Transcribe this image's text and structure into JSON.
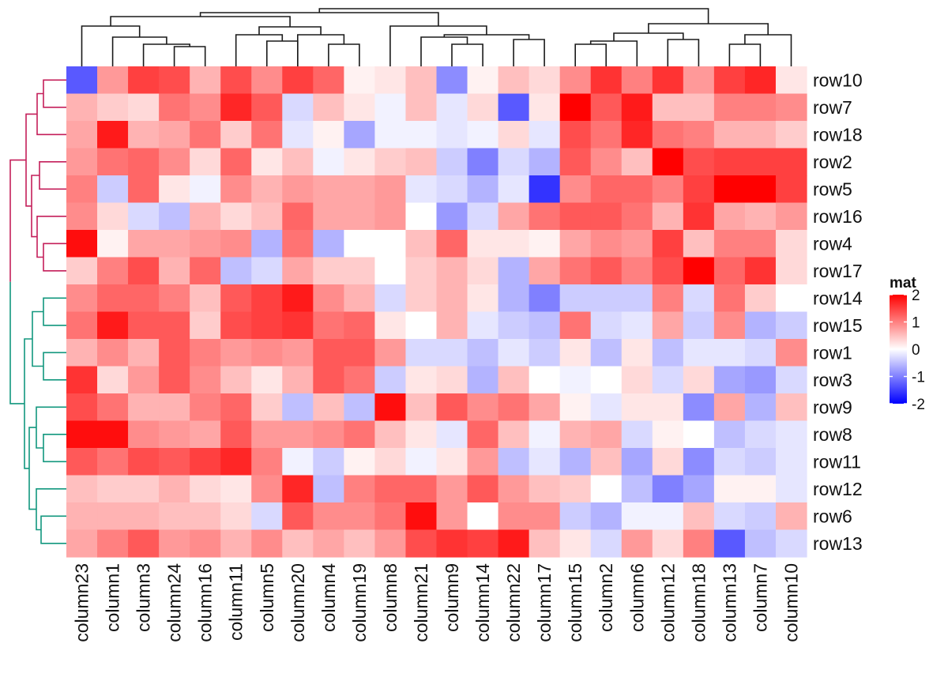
{
  "chart_data": {
    "type": "heatmap",
    "title": "",
    "rows": [
      "row10",
      "row7",
      "row18",
      "row2",
      "row5",
      "row16",
      "row4",
      "row17",
      "row14",
      "row15",
      "row1",
      "row3",
      "row9",
      "row8",
      "row11",
      "row12",
      "row6",
      "row13"
    ],
    "columns": [
      "column23",
      "column1",
      "column3",
      "column24",
      "column16",
      "column11",
      "column5",
      "column20",
      "column4",
      "column19",
      "column8",
      "column21",
      "column9",
      "column14",
      "column22",
      "column17",
      "column15",
      "column2",
      "column6",
      "column12",
      "column18",
      "column13",
      "column7",
      "column10"
    ],
    "values": [
      [
        -1.3,
        0.8,
        1.5,
        1.4,
        0.6,
        1.4,
        0.9,
        1.5,
        1.2,
        0.1,
        0.2,
        0.5,
        -0.9,
        0.1,
        0.5,
        0.3,
        0.9,
        1.6,
        1.0,
        1.6,
        0.8,
        1.5,
        1.7,
        0.2
      ],
      [
        0.6,
        0.4,
        0.3,
        1.1,
        0.9,
        1.7,
        1.3,
        -0.3,
        0.5,
        0.2,
        -0.1,
        0.5,
        -0.2,
        0.3,
        -1.3,
        0.2,
        2.0,
        1.3,
        1.8,
        0.5,
        0.5,
        1.0,
        1.0,
        0.9
      ],
      [
        0.7,
        1.8,
        0.6,
        0.7,
        1.1,
        0.4,
        1.1,
        -0.2,
        0.1,
        -0.7,
        -0.1,
        -0.1,
        -0.2,
        -0.1,
        0.3,
        -0.2,
        1.4,
        1.1,
        1.7,
        1.1,
        1.0,
        0.6,
        0.6,
        0.4
      ],
      [
        0.8,
        1.1,
        1.2,
        0.9,
        0.3,
        1.2,
        0.2,
        0.5,
        -0.1,
        0.2,
        0.4,
        0.5,
        -0.4,
        -1.0,
        -0.3,
        -0.6,
        1.3,
        0.9,
        0.5,
        2.0,
        1.4,
        1.5,
        1.5,
        1.5
      ],
      [
        1.0,
        -0.4,
        1.2,
        0.2,
        -0.1,
        0.9,
        0.6,
        0.8,
        0.7,
        0.7,
        0.8,
        -0.2,
        -0.3,
        -0.6,
        -0.2,
        -1.6,
        0.9,
        1.2,
        1.2,
        1.0,
        1.5,
        2.0,
        2.0,
        1.5
      ],
      [
        0.9,
        0.3,
        -0.3,
        -0.5,
        0.6,
        0.3,
        0.5,
        1.2,
        0.7,
        0.7,
        0.8,
        0.0,
        -0.8,
        -0.3,
        0.7,
        1.1,
        1.3,
        1.3,
        1.1,
        0.6,
        1.6,
        0.7,
        0.6,
        0.8
      ],
      [
        1.9,
        0.1,
        0.7,
        0.7,
        0.8,
        0.9,
        -0.6,
        1.1,
        -0.6,
        0.0,
        0.0,
        0.5,
        1.2,
        0.2,
        0.2,
        0.1,
        0.7,
        0.9,
        0.8,
        1.5,
        0.5,
        1.0,
        1.0,
        0.3
      ],
      [
        0.4,
        1.0,
        1.4,
        0.6,
        1.2,
        -0.5,
        -0.3,
        0.7,
        0.4,
        0.4,
        0.0,
        0.4,
        0.6,
        0.3,
        -0.6,
        0.7,
        1.1,
        1.3,
        1.0,
        1.4,
        2.0,
        1.2,
        1.6,
        0.3
      ],
      [
        0.9,
        1.2,
        1.2,
        1.0,
        0.5,
        1.3,
        1.5,
        1.8,
        0.9,
        0.6,
        -0.3,
        0.4,
        0.6,
        0.2,
        -0.6,
        -1.0,
        -0.4,
        -0.4,
        -0.4,
        1.0,
        -0.3,
        1.1,
        0.4,
        0.0
      ],
      [
        1.1,
        1.8,
        1.3,
        1.3,
        0.4,
        1.4,
        1.5,
        1.6,
        1.1,
        1.2,
        0.2,
        0.0,
        0.6,
        -0.2,
        -0.4,
        -0.5,
        1.1,
        -0.3,
        -0.2,
        0.7,
        -0.4,
        0.9,
        -0.6,
        -0.4
      ],
      [
        0.6,
        0.9,
        0.6,
        1.3,
        1.0,
        0.8,
        0.9,
        0.8,
        1.3,
        1.3,
        0.8,
        -0.3,
        -0.3,
        -0.5,
        -0.2,
        -0.4,
        0.2,
        -0.5,
        0.2,
        -0.5,
        -0.2,
        -0.2,
        -0.3,
        0.9
      ],
      [
        1.6,
        0.3,
        0.8,
        1.3,
        0.9,
        0.5,
        0.2,
        0.6,
        1.3,
        1.1,
        -0.4,
        0.2,
        0.3,
        -0.6,
        0.5,
        0.0,
        -0.1,
        0.0,
        0.3,
        -0.3,
        0.3,
        -0.7,
        -0.8,
        -0.3
      ],
      [
        1.4,
        1.1,
        0.6,
        0.6,
        1.0,
        1.2,
        0.4,
        -0.5,
        0.5,
        -0.5,
        1.9,
        0.5,
        1.3,
        0.9,
        1.1,
        0.7,
        0.1,
        -0.2,
        0.2,
        0.2,
        -0.9,
        0.7,
        -0.6,
        0.5
      ],
      [
        1.9,
        1.9,
        0.9,
        0.8,
        0.7,
        1.3,
        0.8,
        0.8,
        0.9,
        1.1,
        0.5,
        0.2,
        -0.2,
        1.2,
        0.5,
        -0.1,
        0.6,
        0.7,
        -0.3,
        0.1,
        0.0,
        -0.5,
        -0.3,
        -0.2
      ],
      [
        1.3,
        1.1,
        1.4,
        1.3,
        1.5,
        1.7,
        1.0,
        -0.1,
        -0.4,
        0.1,
        0.3,
        -0.1,
        0.2,
        0.8,
        -0.5,
        -0.2,
        -0.6,
        0.5,
        -0.7,
        0.3,
        -0.9,
        -0.3,
        -0.4,
        -0.2
      ],
      [
        0.5,
        0.4,
        0.4,
        0.6,
        0.3,
        0.2,
        0.9,
        1.7,
        -0.5,
        1.0,
        1.2,
        1.2,
        0.8,
        1.3,
        0.8,
        0.5,
        0.4,
        0.0,
        -0.5,
        -1.0,
        -0.7,
        0.1,
        0.1,
        -0.2
      ],
      [
        0.6,
        0.6,
        0.6,
        0.5,
        0.5,
        0.3,
        -0.3,
        1.3,
        0.9,
        0.9,
        1.1,
        1.9,
        0.8,
        0.0,
        0.9,
        0.9,
        -0.4,
        -0.6,
        -0.1,
        -0.1,
        0.5,
        -0.3,
        -0.4,
        0.6
      ],
      [
        0.7,
        1.0,
        1.3,
        0.8,
        0.9,
        0.6,
        0.9,
        0.5,
        0.7,
        0.5,
        0.8,
        1.4,
        1.6,
        1.5,
        1.8,
        0.5,
        0.2,
        -0.3,
        0.8,
        0.3,
        1.0,
        -1.3,
        -0.5,
        -0.3
      ]
    ],
    "color_scale": {
      "name": "mat",
      "breaks": [
        -2,
        0,
        2
      ],
      "colors": [
        "#0000ff",
        "#ffffff",
        "#ff0000"
      ],
      "ticks": [
        2,
        1,
        0,
        -1,
        -2
      ],
      "tick_labels": [
        "2",
        "1",
        "0",
        "-1",
        "-2"
      ]
    },
    "row_clusters": [
      {
        "color": "#c41f5a",
        "rows": [
          "row10",
          "row7",
          "row18",
          "row2",
          "row5",
          "row16",
          "row4",
          "row17"
        ]
      },
      {
        "color": "#12977e",
        "rows": [
          "row14",
          "row15",
          "row1",
          "row3",
          "row9",
          "row8",
          "row11",
          "row12",
          "row6",
          "row13"
        ]
      }
    ],
    "column_dendrogram": [
      [
        0,
        1
      ],
      [
        6,
        7
      ],
      [
        8,
        9
      ],
      [
        10,
        11
      ],
      [
        12,
        13
      ],
      [
        14,
        15
      ],
      [
        16,
        17
      ],
      [
        18,
        19
      ],
      [
        20,
        21
      ],
      [
        22,
        23
      ]
    ],
    "legend_position": "right"
  }
}
